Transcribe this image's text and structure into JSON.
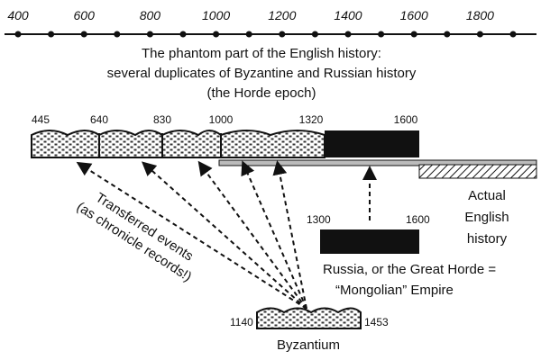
{
  "axis": {
    "ticks": [
      400,
      600,
      800,
      1000,
      1200,
      1400,
      1600,
      1800
    ]
  },
  "title": [
    "The phantom part of the English history:",
    "several duplicates of Byzantine and Russian history",
    "(the Horde epoch)"
  ],
  "english_bar": {
    "labels": [
      445,
      640,
      830,
      1000,
      1320,
      1600
    ]
  },
  "actual_english": [
    "Actual",
    "English",
    "history"
  ],
  "russia": {
    "start": 1300,
    "end": 1600,
    "caption": [
      "Russia, or the Great Horde =",
      "“Mongolian” Empire"
    ]
  },
  "transferred": [
    "Transferred events",
    "(as chronicle records!)"
  ],
  "byzantium": {
    "start": 1140,
    "end": 1453,
    "label": "Byzantium"
  }
}
